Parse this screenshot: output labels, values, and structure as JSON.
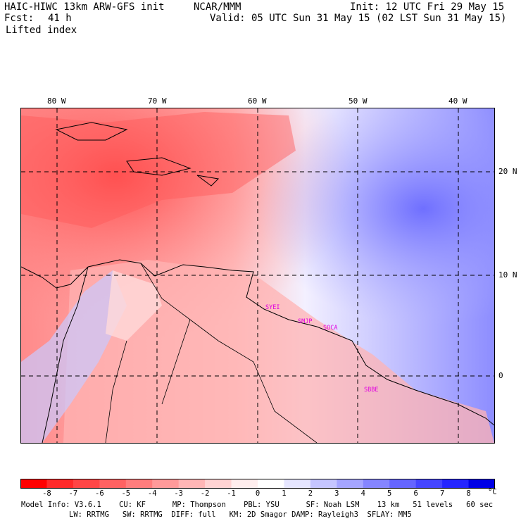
{
  "header": {
    "title": "HAIC-HIWC 13km ARW-GFS init",
    "center": "NCAR/MMM",
    "init": "Init: 12 UTC Fri 29 May 15",
    "fcst_label": "Fcst:",
    "fcst_value": "41 h",
    "valid": "Valid: 05 UTC Sun 31 May 15 (02 LST Sun 31 May 15)",
    "field": "Lifted index"
  },
  "map": {
    "lon_labels": [
      "80 W",
      "70 W",
      "60 W",
      "50 W",
      "40 W"
    ],
    "lat_labels": [
      "20 N",
      "10 N",
      "0"
    ],
    "stations": [
      "SYEI",
      "SMJP",
      "SOCA",
      "SBBE"
    ]
  },
  "colorbar": {
    "ticks": [
      "-8",
      "-7",
      "-6",
      "-5",
      "-4",
      "-3",
      "-2",
      "-1",
      "0",
      "1",
      "2",
      "3",
      "4",
      "5",
      "6",
      "7",
      "8"
    ],
    "unit": "°C",
    "colors": [
      "#ff0000",
      "#ff2a2a",
      "#ff4646",
      "#ff6262",
      "#ff7d7d",
      "#ff9a9a",
      "#ffb6b6",
      "#ffd3d3",
      "#ffeeee",
      "#ffffff",
      "#e6e6ff",
      "#c5c5ff",
      "#a5a5ff",
      "#8585ff",
      "#6565ff",
      "#4545ff",
      "#2525ff",
      "#0000e6"
    ]
  },
  "footer": {
    "line1": "Model Info: V3.6.1    CU: KF      MP: Thompson    PBL: YSU      SF: Noah LSM    13 km   51 levels   60 sec",
    "line2": "LW: RRTMG   SW: RRTMG  DIFF: full   KM: 2D Smagor DAMP: Rayleigh3  SFLAY: MM5"
  }
}
